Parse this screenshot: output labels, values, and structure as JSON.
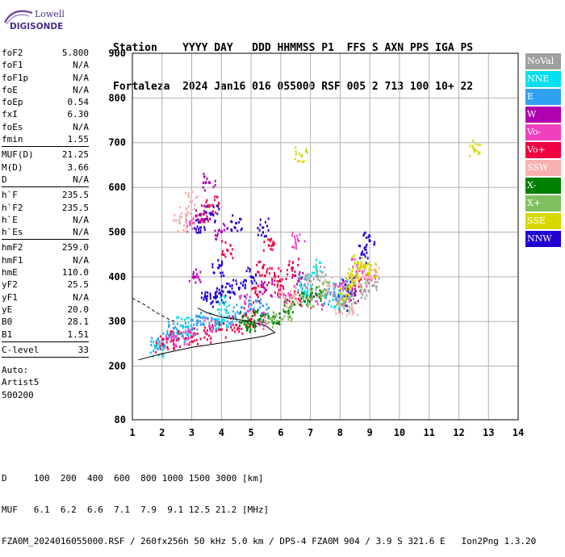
{
  "logo": {
    "line1": "Lowell",
    "line2": "DIGISONDE"
  },
  "header": {
    "line1": "Station    YYYY DAY   DDD HHMMSS P1  FFS S AXN PPS IGA PS",
    "line2": "Fortaleza  2024 Jan16 016 055000 RSF 005 2 713 100 10+ 22"
  },
  "params": [
    [
      {
        "k": "foF2",
        "v": "5.800"
      },
      {
        "k": "foF1",
        "v": "N/A"
      },
      {
        "k": "foF1p",
        "v": "N/A"
      },
      {
        "k": "foE",
        "v": "N/A"
      },
      {
        "k": "foEp",
        "v": "0.54"
      },
      {
        "k": "fxI",
        "v": "6.30"
      },
      {
        "k": "foEs",
        "v": "N/A"
      },
      {
        "k": "fmin",
        "v": "1.55"
      }
    ],
    [
      {
        "k": "MUF(D)",
        "v": "21.25"
      },
      {
        "k": "M(D)",
        "v": "3.66"
      },
      {
        "k": "D",
        "v": "N/A"
      }
    ],
    [
      {
        "k": "h`F",
        "v": "235.5"
      },
      {
        "k": "h`F2",
        "v": "235.5"
      },
      {
        "k": "h`E",
        "v": "N/A"
      },
      {
        "k": "h`Es",
        "v": "N/A"
      }
    ],
    [
      {
        "k": "hmF2",
        "v": "259.0"
      },
      {
        "k": "hmF1",
        "v": "N/A"
      },
      {
        "k": "hmE",
        "v": "110.0"
      },
      {
        "k": "yF2",
        "v": "25.5"
      },
      {
        "k": "yF1",
        "v": "N/A"
      },
      {
        "k": "yE",
        "v": "20.0"
      },
      {
        "k": "B0",
        "v": "28.1"
      },
      {
        "k": "B1",
        "v": "1.51"
      }
    ],
    [
      {
        "k": "C-level",
        "v": "33"
      }
    ]
  ],
  "auto": [
    "Auto:",
    "Artist5",
    "500200"
  ],
  "legend": [
    {
      "label": "NoVal",
      "color": "#a0a0a0"
    },
    {
      "label": "NNE",
      "color": "#00e0f0"
    },
    {
      "label": "E",
      "color": "#30a0f0"
    },
    {
      "label": "W",
      "color": "#b000b0"
    },
    {
      "label": "Vo-",
      "color": "#f040c0"
    },
    {
      "label": "Vo+",
      "color": "#f00040"
    },
    {
      "label": "SSW",
      "color": "#f8b0b0"
    },
    {
      "label": "X-",
      "color": "#008000"
    },
    {
      "label": "X+",
      "color": "#80c060"
    },
    {
      "label": "SSE",
      "color": "#d8d800"
    },
    {
      "label": "NNW",
      "color": "#2000d0"
    }
  ],
  "footer": {
    "line1": "D     100  200  400  600  800 1000 1500 3000 [km]",
    "line2": "MUF   6.1  6.2  6.6  7.1  7.9  9.1 12.5 21.2 [MHz]",
    "line3": "FZA0M_2024016055000.RSF / 260fx256h 50 kHz 5.0 km / DPS-4 FZA0M 904 / 3.9 S 321.6 E   Ion2Png 1.3.20"
  },
  "chart_data": {
    "type": "scatter",
    "title": "",
    "xlabel": "",
    "ylabel": "",
    "xlim": [
      1,
      14
    ],
    "ylim": [
      80,
      900
    ],
    "xticks": [
      1,
      2,
      3,
      4,
      5,
      6,
      7,
      8,
      9,
      10,
      11,
      12,
      13,
      14
    ],
    "yticks": [
      80,
      200,
      300,
      400,
      500,
      600,
      700,
      800,
      900
    ],
    "grid": true,
    "series": [
      {
        "name": "E",
        "color": "#30a0f0",
        "points": [
          [
            1.8,
            245
          ],
          [
            2.2,
            262
          ],
          [
            2.6,
            272
          ],
          [
            3.0,
            282
          ],
          [
            3.4,
            292
          ],
          [
            3.8,
            300
          ],
          [
            4.2,
            308
          ],
          [
            4.6,
            318
          ],
          [
            5.0,
            328
          ],
          [
            5.4,
            335
          ],
          [
            7.5,
            355
          ],
          [
            7.8,
            365
          ],
          [
            8.2,
            375
          ],
          [
            2.4,
            285
          ],
          [
            3.2,
            302
          ]
        ]
      },
      {
        "name": "Vo+",
        "color": "#f00040",
        "points": [
          [
            2.0,
            250
          ],
          [
            2.5,
            258
          ],
          [
            3.0,
            265
          ],
          [
            3.5,
            272
          ],
          [
            4.0,
            282
          ],
          [
            4.5,
            292
          ],
          [
            5.0,
            305
          ],
          [
            5.2,
            360
          ],
          [
            5.4,
            420
          ],
          [
            5.6,
            470
          ],
          [
            5.8,
            400
          ],
          [
            6.0,
            380
          ],
          [
            6.4,
            420
          ],
          [
            6.5,
            350
          ],
          [
            3.4,
            540
          ],
          [
            3.7,
            560
          ],
          [
            4.2,
            460
          ],
          [
            8.5,
            380
          ]
        ]
      },
      {
        "name": "Vo-",
        "color": "#f040c0",
        "points": [
          [
            2.3,
            255
          ],
          [
            2.9,
            262
          ],
          [
            3.6,
            290
          ],
          [
            4.8,
            340
          ],
          [
            5.3,
            300
          ],
          [
            6.1,
            360
          ],
          [
            6.6,
            480
          ],
          [
            7.2,
            345
          ],
          [
            8.0,
            370
          ],
          [
            8.6,
            420
          ],
          [
            9.0,
            395
          ],
          [
            3.0,
            520
          ]
        ]
      },
      {
        "name": "NNW",
        "color": "#2000d0",
        "points": [
          [
            3.5,
            350
          ],
          [
            3.8,
            355
          ],
          [
            4.0,
            360
          ],
          [
            4.3,
            365
          ],
          [
            4.6,
            375
          ],
          [
            5.0,
            400
          ],
          [
            3.9,
            420
          ],
          [
            3.3,
            510
          ],
          [
            3.7,
            540
          ],
          [
            4.5,
            520
          ],
          [
            5.4,
            510
          ],
          [
            8.1,
            340
          ],
          [
            8.3,
            380
          ],
          [
            8.8,
            450
          ],
          [
            9.0,
            480
          ]
        ]
      },
      {
        "name": "W",
        "color": "#b000b0",
        "points": [
          [
            3.3,
            540
          ],
          [
            3.6,
            610
          ],
          [
            4.0,
            500
          ],
          [
            5.5,
            370
          ],
          [
            6.6,
            390
          ],
          [
            8.4,
            360
          ],
          [
            3.1,
            400
          ]
        ]
      },
      {
        "name": "NNE",
        "color": "#00e0f0",
        "points": [
          [
            1.9,
            240
          ],
          [
            2.7,
            290
          ],
          [
            4.1,
            338
          ],
          [
            6.8,
            380
          ],
          [
            7.2,
            420
          ],
          [
            7.9,
            350
          ],
          [
            4.0,
            300
          ],
          [
            6.9,
            360
          ]
        ]
      },
      {
        "name": "SSW",
        "color": "#f8b0b0",
        "points": [
          [
            2.8,
            540
          ],
          [
            3.0,
            570
          ],
          [
            6.5,
            360
          ],
          [
            7.6,
            380
          ],
          [
            8.0,
            335
          ],
          [
            8.4,
            330
          ],
          [
            8.8,
            400
          ],
          [
            9.2,
            410
          ],
          [
            6.2,
            345
          ],
          [
            2.6,
            520
          ]
        ]
      },
      {
        "name": "X-",
        "color": "#008000",
        "points": [
          [
            4.8,
            300
          ],
          [
            5.3,
            305
          ],
          [
            5.8,
            310
          ],
          [
            6.3,
            330
          ],
          [
            6.8,
            345
          ],
          [
            7.2,
            360
          ],
          [
            5.0,
            295
          ]
        ]
      },
      {
        "name": "X+",
        "color": "#80c060",
        "points": [
          [
            5.7,
            306
          ],
          [
            6.2,
            320
          ],
          [
            6.9,
            352
          ],
          [
            7.5,
            370
          ],
          [
            8.1,
            340
          ]
        ]
      },
      {
        "name": "SSE",
        "color": "#d8d800",
        "points": [
          [
            8.2,
            360
          ],
          [
            8.4,
            400
          ],
          [
            8.6,
            430
          ],
          [
            8.8,
            420
          ],
          [
            9.0,
            410
          ],
          [
            6.7,
            670
          ],
          [
            12.5,
            688
          ],
          [
            8.5,
            390
          ]
        ]
      },
      {
        "name": "NoVal",
        "color": "#a0a0a0",
        "points": [
          [
            8.3,
            350
          ],
          [
            8.7,
            370
          ],
          [
            9.1,
            380
          ],
          [
            7.0,
            390
          ],
          [
            7.4,
            410
          ]
        ]
      }
    ],
    "curves": {
      "solid": [
        [
          1.2,
          214
        ],
        [
          2.0,
          228
        ],
        [
          3.0,
          242
        ],
        [
          4.0,
          252
        ],
        [
          5.0,
          262
        ],
        [
          5.5,
          268
        ],
        [
          5.8,
          275
        ],
        [
          5.5,
          290
        ],
        [
          5.0,
          300
        ],
        [
          4.5,
          305
        ],
        [
          4.0,
          310
        ],
        [
          3.5,
          320
        ],
        [
          3.2,
          330
        ]
      ],
      "dashed": [
        [
          1.0,
          352
        ],
        [
          1.4,
          338
        ],
        [
          1.8,
          320
        ],
        [
          2.2,
          306
        ],
        [
          2.5,
          298
        ]
      ]
    }
  }
}
